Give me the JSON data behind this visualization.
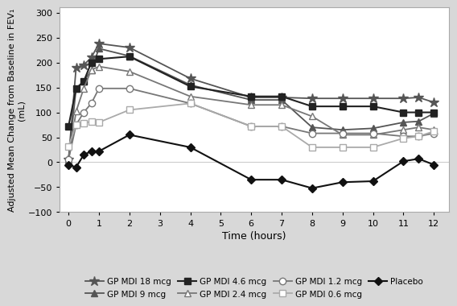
{
  "xlabel": "Time (hours)",
  "ylabel": "Adjusted Mean Change from Baseline in FEV₁\n(mL)",
  "xlim": [
    -0.3,
    12.5
  ],
  "ylim": [
    -100,
    310
  ],
  "yticks": [
    -100,
    -50,
    0,
    50,
    100,
    150,
    200,
    250,
    300
  ],
  "xticks": [
    0,
    1,
    2,
    3,
    4,
    5,
    6,
    7,
    8,
    9,
    10,
    11,
    12
  ],
  "time_points": [
    0,
    0.25,
    0.5,
    0.75,
    1,
    2,
    4,
    6,
    7,
    8,
    9,
    10,
    11,
    11.5,
    12
  ],
  "series": [
    {
      "label": "GP MDI 18 mcg",
      "values": [
        5,
        190,
        195,
        210,
        238,
        230,
        168,
        130,
        130,
        128,
        128,
        128,
        128,
        130,
        120
      ],
      "marker": "*",
      "markersize": 9,
      "color": "#555555",
      "linewidth": 1.3,
      "fillstyle": "full"
    },
    {
      "label": "GP MDI 9 mcg",
      "values": [
        5,
        148,
        162,
        185,
        228,
        213,
        155,
        125,
        125,
        70,
        65,
        68,
        80,
        82,
        98
      ],
      "marker": "^",
      "markersize": 6,
      "color": "#555555",
      "linewidth": 1.3,
      "fillstyle": "full"
    },
    {
      "label": "GP MDI 4.6 mcg",
      "values": [
        72,
        148,
        162,
        200,
        207,
        212,
        152,
        132,
        132,
        112,
        112,
        112,
        100,
        100,
        100
      ],
      "marker": "s",
      "markersize": 6,
      "color": "#222222",
      "linewidth": 1.5,
      "fillstyle": "full"
    },
    {
      "label": "GP MDI 2.4 mcg",
      "values": [
        5,
        102,
        148,
        185,
        192,
        182,
        132,
        115,
        115,
        92,
        55,
        55,
        65,
        70,
        65
      ],
      "marker": "^",
      "markersize": 6,
      "color": "#777777",
      "linewidth": 1.3,
      "fillstyle": "none"
    },
    {
      "label": "GP MDI 1.2 mcg",
      "values": [
        5,
        75,
        100,
        118,
        148,
        148,
        118,
        72,
        72,
        58,
        58,
        58,
        52,
        52,
        58
      ],
      "marker": "o",
      "markersize": 6,
      "color": "#777777",
      "linewidth": 1.3,
      "fillstyle": "none"
    },
    {
      "label": "GP MDI 0.6 mcg",
      "values": [
        32,
        75,
        78,
        82,
        80,
        105,
        118,
        72,
        72,
        30,
        30,
        30,
        48,
        52,
        62
      ],
      "marker": "s",
      "markersize": 6,
      "color": "#aaaaaa",
      "linewidth": 1.3,
      "fillstyle": "none"
    },
    {
      "label": "Placebo",
      "values": [
        -5,
        -10,
        15,
        22,
        22,
        55,
        30,
        -35,
        -35,
        -52,
        -40,
        -38,
        2,
        7,
        -5
      ],
      "marker": "D",
      "markersize": 5,
      "color": "#111111",
      "linewidth": 1.5,
      "fillstyle": "full"
    }
  ],
  "outer_bg": "#d8d8d8",
  "plot_bg": "#ffffff",
  "legend_ncol": 4,
  "legend_fontsize": 7.5
}
